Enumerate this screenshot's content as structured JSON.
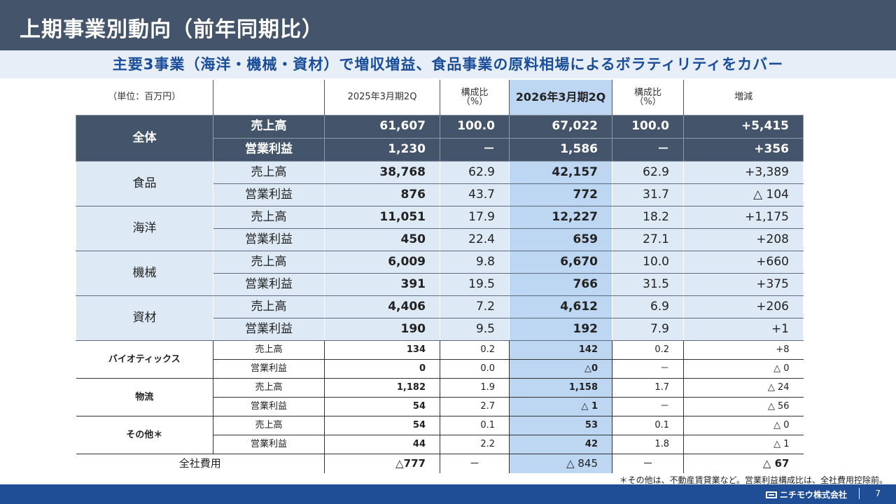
{
  "title": "上期事業別動向（前年同期比）",
  "subtitle": "主要3事業（海洋・機械・資材）で増収増益、食品事業の原料相場によるボラティリティをカバー",
  "header": {
    "unit": "（単位：百万円）",
    "prev": "2025年3月期2Q",
    "ratio1": "構成比\n（%）",
    "curr": "2026年3月期2Q",
    "ratio2": "構成比\n（%）",
    "change": "増減"
  },
  "total": {
    "name": "全体",
    "rows": [
      {
        "label": "売上高",
        "prev": "61,607",
        "r1": "100.0",
        "curr": "67,022",
        "r2": "100.0",
        "chg": "+5,415"
      },
      {
        "label": "営業利益",
        "prev": "1,230",
        "r1": "－",
        "curr": "1,586",
        "r2": "－",
        "chg": "+356"
      }
    ]
  },
  "segments": [
    {
      "name": "食品",
      "rows": [
        {
          "label": "売上高",
          "prev": "38,768",
          "r1": "62.9",
          "curr": "42,157",
          "r2": "62.9",
          "chg": "+3,389"
        },
        {
          "label": "営業利益",
          "prev": "876",
          "r1": "43.7",
          "curr": "772",
          "r2": "31.7",
          "chg": "△ 104"
        }
      ]
    },
    {
      "name": "海洋",
      "rows": [
        {
          "label": "売上高",
          "prev": "11,051",
          "r1": "17.9",
          "curr": "12,227",
          "r2": "18.2",
          "chg": "+1,175"
        },
        {
          "label": "営業利益",
          "prev": "450",
          "r1": "22.4",
          "curr": "659",
          "r2": "27.1",
          "chg": "+208"
        }
      ]
    },
    {
      "name": "機械",
      "rows": [
        {
          "label": "売上高",
          "prev": "6,009",
          "r1": "9.8",
          "curr": "6,670",
          "r2": "10.0",
          "chg": "+660"
        },
        {
          "label": "営業利益",
          "prev": "391",
          "r1": "19.5",
          "curr": "766",
          "r2": "31.5",
          "chg": "+375"
        }
      ]
    },
    {
      "name": "資材",
      "rows": [
        {
          "label": "売上高",
          "prev": "4,406",
          "r1": "7.2",
          "curr": "4,612",
          "r2": "6.9",
          "chg": "+206"
        },
        {
          "label": "営業利益",
          "prev": "190",
          "r1": "9.5",
          "curr": "192",
          "r2": "7.9",
          "chg": "+1"
        }
      ]
    }
  ],
  "small_segments": [
    {
      "name": "バイオティックス",
      "rows": [
        {
          "label": "売上高",
          "prev": "134",
          "r1": "0.2",
          "curr": "142",
          "r2": "0.2",
          "chg": "+8"
        },
        {
          "label": "営業利益",
          "prev": "0",
          "r1": "0.0",
          "curr": "△0",
          "r2": "－",
          "chg": "△ 0"
        }
      ]
    },
    {
      "name": "物流",
      "rows": [
        {
          "label": "売上高",
          "prev": "1,182",
          "r1": "1.9",
          "curr": "1,158",
          "r2": "1.7",
          "chg": "△ 24"
        },
        {
          "label": "営業利益",
          "prev": "54",
          "r1": "2.7",
          "curr": "△ 1",
          "r2": "－",
          "chg": "△ 56"
        }
      ]
    },
    {
      "name": "その他＊",
      "rows": [
        {
          "label": "売上高",
          "prev": "54",
          "r1": "0.1",
          "curr": "53",
          "r2": "0.1",
          "chg": "△ 0"
        },
        {
          "label": "営業利益",
          "prev": "44",
          "r1": "2.2",
          "curr": "42",
          "r2": "1.8",
          "chg": "△ 1"
        }
      ]
    }
  ],
  "company_cost": {
    "label": "全社費用",
    "prev": "△777",
    "r1": "－",
    "curr": "△ 845",
    "r2": "－",
    "chg": "△ 67"
  },
  "note": "＊その他は、不動産賃貸業など。営業利益構成比は、全社費用控除前。",
  "footer": {
    "company": "ニチモウ株式会社",
    "page": "7"
  }
}
